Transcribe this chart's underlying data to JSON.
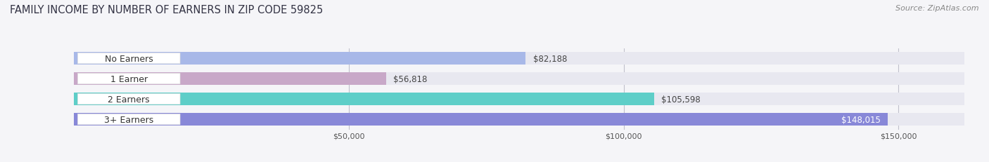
{
  "title": "FAMILY INCOME BY NUMBER OF EARNERS IN ZIP CODE 59825",
  "source": "Source: ZipAtlas.com",
  "categories": [
    "No Earners",
    "1 Earner",
    "2 Earners",
    "3+ Earners"
  ],
  "values": [
    82188,
    56818,
    105598,
    148015
  ],
  "bar_colors": [
    "#a8b8e8",
    "#c8a8c8",
    "#5ecec8",
    "#8888d8"
  ],
  "bar_bg_color": "#e8e8f0",
  "label_bg_color": "#ffffff",
  "xlim": [
    0,
    162000
  ],
  "xticks": [
    50000,
    100000,
    150000
  ],
  "xtick_labels": [
    "$50,000",
    "$100,000",
    "$150,000"
  ],
  "title_fontsize": 10.5,
  "source_fontsize": 8,
  "label_fontsize": 9,
  "value_fontsize": 8.5,
  "background_color": "#f5f5f8",
  "bar_height": 0.6
}
